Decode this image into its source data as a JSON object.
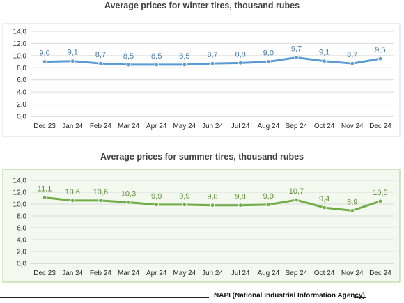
{
  "chart_data": [
    {
      "type": "line",
      "title": "Average prices for winter tires, thousand rubes",
      "xlabel": "",
      "ylabel": "",
      "categories": [
        "Dec 23",
        "Jan 24",
        "Feb 24",
        "Mar 24",
        "Apr 24",
        "May 24",
        "Jun 24",
        "Jul 24",
        "Aug 24",
        "Sep 24",
        "Oct 24",
        "Nov 24",
        "Dec 24"
      ],
      "series": [
        {
          "values": [
            9.0,
            9.1,
            8.7,
            8.5,
            8.5,
            8.5,
            8.7,
            8.8,
            9.0,
            9.7,
            9.1,
            8.7,
            9.5
          ],
          "labels": [
            "9,0",
            "9,1",
            "8,7",
            "8,5",
            "8,5",
            "8,5",
            "8,7",
            "8,8",
            "9,0",
            "9,7",
            "9,1",
            "8,7",
            "9,5"
          ]
        }
      ],
      "ylim": [
        0,
        14
      ],
      "yticks": [
        "0,0",
        "2,0",
        "4,0",
        "6,0",
        "8,0",
        "10,0",
        "12,0",
        "14,0"
      ],
      "grid": true,
      "legend": "none",
      "colors": {
        "line": "#5b9bd5",
        "label": "#4a7ba7",
        "plot_border": "#d9d9d9",
        "grid": "#d9d9d9",
        "background": "#ffffff"
      }
    },
    {
      "type": "line",
      "title": "Average prices for summer tires, thousand rubes",
      "xlabel": "",
      "ylabel": "",
      "categories": [
        "Dec 23",
        "Jan 24",
        "Feb 24",
        "Mar 24",
        "Apr 24",
        "May 24",
        "Jun 24",
        "Jul 24",
        "Aug 24",
        "Sep 24",
        "Oct 24",
        "Nov 24",
        "Dec 24"
      ],
      "series": [
        {
          "values": [
            11.1,
            10.6,
            10.6,
            10.3,
            9.9,
            9.9,
            9.8,
            9.8,
            9.9,
            10.7,
            9.4,
            8.9,
            10.5
          ],
          "labels": [
            "11,1",
            "10,6",
            "10,6",
            "10,3",
            "9,9",
            "9,9",
            "9,8",
            "9,8",
            "9,9",
            "10,7",
            "9,4",
            "8,9",
            "10,5"
          ]
        }
      ],
      "ylim": [
        0,
        14
      ],
      "yticks": [
        "0,0",
        "2,0",
        "4,0",
        "6,0",
        "8,0",
        "10,0",
        "12,0",
        "14,0"
      ],
      "grid": true,
      "legend": "none",
      "colors": {
        "line": "#70ad47",
        "label": "#5e8e39",
        "plot_border": "#a9d18e",
        "grid": "#d9d9d9",
        "background": "#f3f9ee"
      }
    }
  ],
  "footer": {
    "source": "NAPI (National Industrial Information Agency)"
  }
}
